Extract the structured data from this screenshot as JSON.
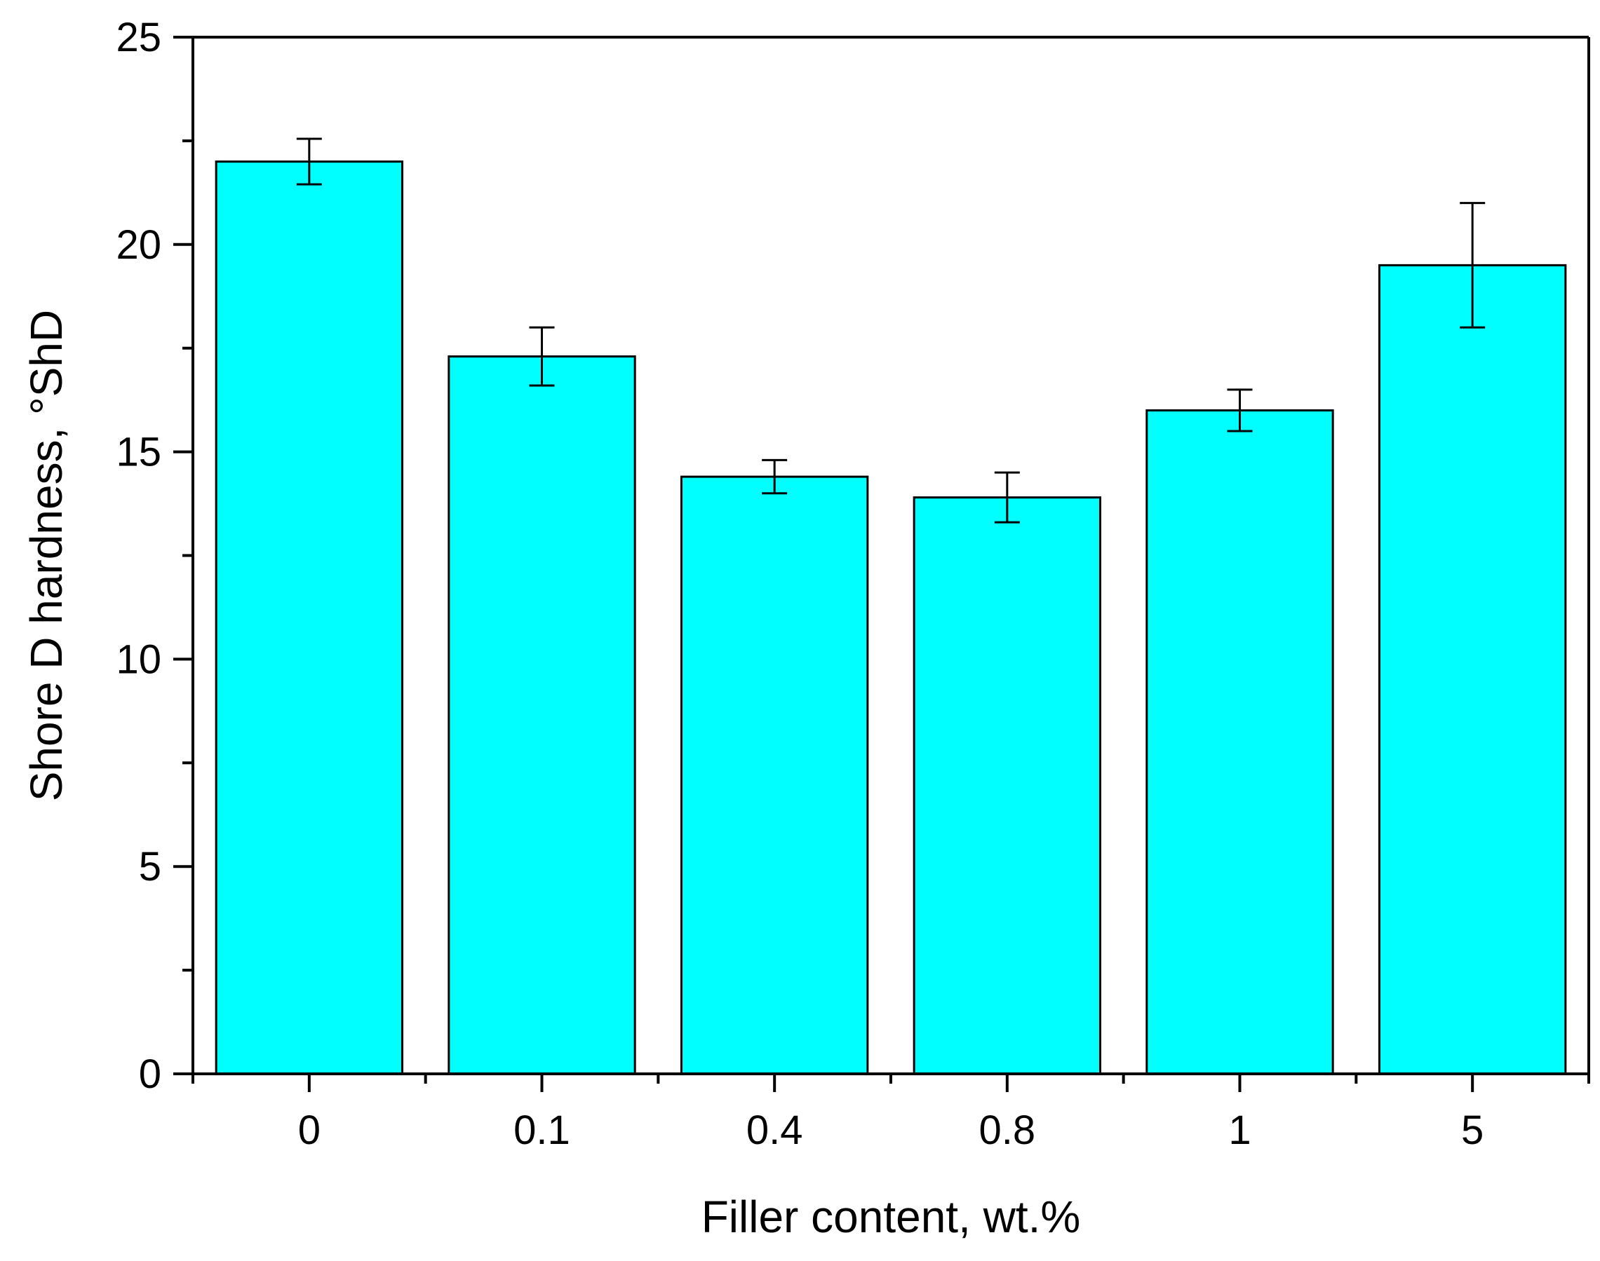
{
  "chart_data": {
    "type": "bar",
    "categories": [
      "0",
      "0.1",
      "0.4",
      "0.8",
      "1",
      "5"
    ],
    "values": [
      22.0,
      17.3,
      14.4,
      13.9,
      16.0,
      19.5
    ],
    "errors": [
      0.55,
      0.7,
      0.4,
      0.6,
      0.5,
      1.5
    ],
    "xlabel": "Filler content, wt.%",
    "ylabel": "Shore D hardness, °ShD",
    "ylim": [
      0,
      25
    ],
    "yticks": [
      "0",
      "5",
      "10",
      "15",
      "20",
      "25"
    ],
    "grid": false,
    "bar_color": "#00FFFF",
    "edge_color": "#000000"
  }
}
